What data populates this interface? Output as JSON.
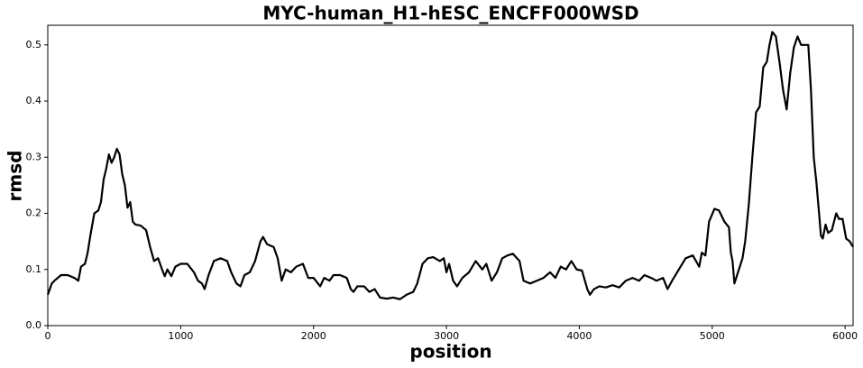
{
  "chart_data": {
    "type": "line",
    "title": "MYC-human_H1-hESC_ENCFF000WSD",
    "xlabel": "position",
    "ylabel": "rmsd",
    "color": "#000000",
    "x": [
      0,
      30,
      50,
      100,
      150,
      200,
      230,
      250,
      280,
      300,
      320,
      350,
      380,
      400,
      420,
      440,
      460,
      480,
      500,
      520,
      540,
      560,
      580,
      600,
      620,
      640,
      660,
      700,
      740,
      770,
      800,
      830,
      860,
      880,
      900,
      930,
      960,
      1000,
      1050,
      1100,
      1130,
      1160,
      1180,
      1210,
      1250,
      1300,
      1350,
      1380,
      1420,
      1450,
      1480,
      1520,
      1560,
      1600,
      1620,
      1650,
      1700,
      1730,
      1760,
      1790,
      1830,
      1870,
      1920,
      1960,
      2000,
      2050,
      2080,
      2120,
      2150,
      2200,
      2250,
      2280,
      2300,
      2330,
      2380,
      2420,
      2460,
      2500,
      2550,
      2600,
      2650,
      2700,
      2750,
      2780,
      2820,
      2860,
      2900,
      2950,
      2980,
      3000,
      3020,
      3050,
      3080,
      3120,
      3170,
      3220,
      3270,
      3300,
      3340,
      3380,
      3420,
      3460,
      3500,
      3550,
      3580,
      3630,
      3680,
      3730,
      3780,
      3820,
      3860,
      3900,
      3940,
      3980,
      4020,
      4060,
      4080,
      4110,
      4150,
      4200,
      4250,
      4300,
      4350,
      4400,
      4450,
      4490,
      4540,
      4580,
      4630,
      4664,
      4698,
      4800,
      4854,
      4902,
      4922,
      4949,
      4976,
      5017,
      5051,
      5092,
      5126,
      5140,
      5153,
      5167,
      5194,
      5228,
      5248,
      5275,
      5302,
      5330,
      5357,
      5384,
      5411,
      5431,
      5452,
      5479,
      5506,
      5533,
      5560,
      5587,
      5614,
      5642,
      5669,
      5723,
      5743,
      5764,
      5784,
      5804,
      5818,
      5832,
      5853,
      5872,
      5900,
      5933,
      5954,
      5981,
      6008,
      6035,
      6060
    ],
    "values": [
      0.055,
      0.075,
      0.08,
      0.09,
      0.09,
      0.085,
      0.08,
      0.105,
      0.11,
      0.13,
      0.16,
      0.2,
      0.205,
      0.22,
      0.26,
      0.28,
      0.305,
      0.29,
      0.3,
      0.315,
      0.305,
      0.27,
      0.25,
      0.21,
      0.22,
      0.185,
      0.18,
      0.178,
      0.17,
      0.14,
      0.115,
      0.12,
      0.1,
      0.088,
      0.1,
      0.088,
      0.105,
      0.11,
      0.11,
      0.095,
      0.08,
      0.075,
      0.065,
      0.09,
      0.115,
      0.12,
      0.115,
      0.095,
      0.075,
      0.07,
      0.09,
      0.095,
      0.115,
      0.15,
      0.158,
      0.145,
      0.14,
      0.12,
      0.08,
      0.1,
      0.095,
      0.105,
      0.11,
      0.085,
      0.085,
      0.07,
      0.085,
      0.08,
      0.09,
      0.09,
      0.085,
      0.065,
      0.06,
      0.07,
      0.07,
      0.06,
      0.065,
      0.05,
      0.048,
      0.05,
      0.047,
      0.055,
      0.06,
      0.075,
      0.11,
      0.12,
      0.122,
      0.115,
      0.12,
      0.095,
      0.11,
      0.08,
      0.07,
      0.085,
      0.095,
      0.115,
      0.1,
      0.11,
      0.08,
      0.095,
      0.12,
      0.125,
      0.128,
      0.115,
      0.08,
      0.075,
      0.08,
      0.085,
      0.095,
      0.085,
      0.105,
      0.1,
      0.115,
      0.1,
      0.098,
      0.065,
      0.055,
      0.065,
      0.07,
      0.068,
      0.072,
      0.068,
      0.08,
      0.085,
      0.08,
      0.09,
      0.085,
      0.08,
      0.085,
      0.065,
      0.08,
      0.12,
      0.125,
      0.105,
      0.13,
      0.125,
      0.185,
      0.208,
      0.205,
      0.185,
      0.175,
      0.13,
      0.115,
      0.075,
      0.095,
      0.12,
      0.15,
      0.215,
      0.3,
      0.38,
      0.39,
      0.46,
      0.47,
      0.5,
      0.523,
      0.515,
      0.47,
      0.42,
      0.385,
      0.45,
      0.495,
      0.515,
      0.5,
      0.5,
      0.42,
      0.3,
      0.255,
      0.2,
      0.16,
      0.155,
      0.18,
      0.165,
      0.17,
      0.2,
      0.19,
      0.19,
      0.155,
      0.15,
      0.14
    ],
    "xlim": [
      0,
      6060
    ],
    "ylim": [
      0,
      0.535
    ],
    "xticks": [
      0,
      1000,
      2000,
      3000,
      4000,
      5000,
      6000
    ],
    "yticks": [
      {
        "value": 0,
        "label": "0.0"
      },
      0.1,
      0.2,
      0.3,
      0.4,
      0.5
    ]
  }
}
